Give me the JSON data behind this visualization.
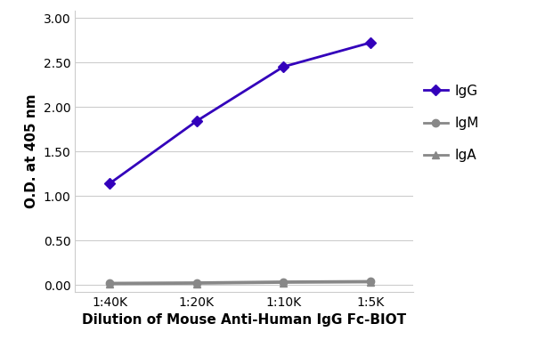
{
  "x_labels": [
    "1:40K",
    "1:20K",
    "1:10K",
    "1:5K"
  ],
  "x_values": [
    1,
    2,
    3,
    4
  ],
  "IgG_values": [
    1.14,
    1.84,
    2.45,
    2.72
  ],
  "IgM_values": [
    0.02,
    0.025,
    0.035,
    0.04
  ],
  "IgA_values": [
    0.01,
    0.015,
    0.025,
    0.03
  ],
  "IgG_color": "#3300bb",
  "IgM_color": "#888888",
  "IgA_color": "#888888",
  "line_width": 2.0,
  "xlabel": "Dilution of Mouse Anti-Human IgG Fc-BIOT",
  "ylabel": "O.D. at 405 nm",
  "ylim": [
    -0.08,
    3.08
  ],
  "yticks": [
    0.0,
    0.5,
    1.0,
    1.5,
    2.0,
    2.5,
    3.0
  ],
  "bg_color": "#ffffff",
  "grid_color": "#cccccc",
  "legend_labels": [
    "IgG",
    "IgM",
    "IgA"
  ],
  "xlabel_fontsize": 11,
  "ylabel_fontsize": 11,
  "tick_fontsize": 10,
  "legend_fontsize": 11
}
